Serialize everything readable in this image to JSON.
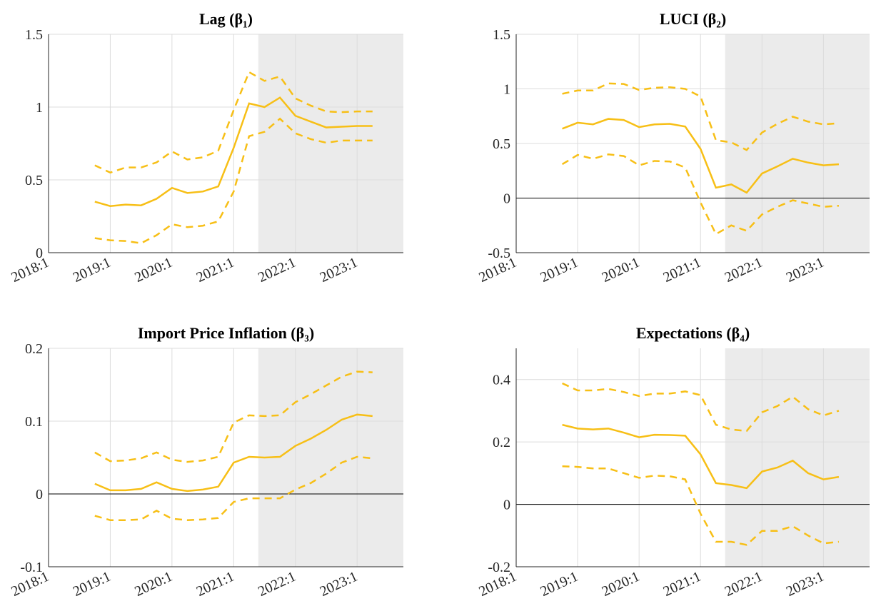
{
  "chart_data": [
    {
      "type": "line",
      "title": "Lag (β₁)",
      "x": [
        2018.75,
        2019,
        2019.25,
        2019.5,
        2019.75,
        2020,
        2020.25,
        2020.5,
        2020.75,
        2021,
        2021.25,
        2021.5,
        2021.75,
        2022,
        2022.25,
        2022.5,
        2022.75,
        2023,
        2023.25
      ],
      "xlim": [
        2018,
        2023.75
      ],
      "xticks": [
        {
          "value": 2018,
          "label": "2018:1"
        },
        {
          "value": 2019,
          "label": "2019:1"
        },
        {
          "value": 2020,
          "label": "2020:1"
        },
        {
          "value": 2021,
          "label": "2021:1"
        },
        {
          "value": 2022,
          "label": "2022:1"
        },
        {
          "value": 2023,
          "label": "2023:1"
        }
      ],
      "ylim": [
        0,
        1.5
      ],
      "yticks": [
        0,
        0.5,
        1,
        1.5
      ],
      "grid": true,
      "shaded_region": [
        2021.4,
        2023.75
      ],
      "series": [
        {
          "color": "#f7bf16",
          "dashed": false,
          "values": [
            0.35,
            0.32,
            0.33,
            0.325,
            0.37,
            0.445,
            0.41,
            0.42,
            0.455,
            0.72,
            1.025,
            1.0,
            1.065,
            0.94,
            0.9,
            0.86,
            0.865,
            0.87,
            0.87
          ]
        },
        {
          "color": "#f7bf16",
          "dashed": true,
          "values": [
            0.6,
            0.55,
            0.585,
            0.585,
            0.62,
            0.695,
            0.64,
            0.655,
            0.7,
            0.98,
            1.24,
            1.18,
            1.21,
            1.06,
            1.01,
            0.97,
            0.965,
            0.97,
            0.97
          ]
        },
        {
          "color": "#f7bf16",
          "dashed": true,
          "values": [
            0.1,
            0.085,
            0.08,
            0.065,
            0.12,
            0.195,
            0.175,
            0.185,
            0.215,
            0.42,
            0.8,
            0.83,
            0.92,
            0.82,
            0.78,
            0.755,
            0.77,
            0.77,
            0.77
          ]
        }
      ]
    },
    {
      "type": "line",
      "title": "LUCI (β₂)",
      "x": [
        2018.75,
        2019,
        2019.25,
        2019.5,
        2019.75,
        2020,
        2020.25,
        2020.5,
        2020.75,
        2021,
        2021.25,
        2021.5,
        2021.75,
        2022,
        2022.25,
        2022.5,
        2022.75,
        2023,
        2023.25
      ],
      "xlim": [
        2018,
        2023.75
      ],
      "xticks": [
        {
          "value": 2018,
          "label": "2018:1"
        },
        {
          "value": 2019,
          "label": "2019:1"
        },
        {
          "value": 2020,
          "label": "2020:1"
        },
        {
          "value": 2021,
          "label": "2021:1"
        },
        {
          "value": 2022,
          "label": "2022:1"
        },
        {
          "value": 2023,
          "label": "2023:1"
        }
      ],
      "ylim": [
        -0.5,
        1.5
      ],
      "yticks": [
        -0.5,
        0,
        0.5,
        1,
        1.5
      ],
      "grid": true,
      "shaded_region": [
        2021.4,
        2023.75
      ],
      "series": [
        {
          "color": "#f7bf16",
          "dashed": false,
          "values": [
            0.635,
            0.69,
            0.675,
            0.725,
            0.715,
            0.65,
            0.675,
            0.68,
            0.655,
            0.45,
            0.095,
            0.125,
            0.05,
            0.225,
            0.29,
            0.36,
            0.325,
            0.3,
            0.31
          ]
        },
        {
          "color": "#f7bf16",
          "dashed": true,
          "values": [
            0.955,
            0.985,
            0.985,
            1.05,
            1.045,
            0.99,
            1.01,
            1.015,
            1.0,
            0.93,
            0.53,
            0.51,
            0.44,
            0.6,
            0.68,
            0.745,
            0.7,
            0.675,
            0.685
          ]
        },
        {
          "color": "#f7bf16",
          "dashed": true,
          "values": [
            0.31,
            0.395,
            0.36,
            0.4,
            0.385,
            0.3,
            0.34,
            0.335,
            0.28,
            -0.04,
            -0.33,
            -0.25,
            -0.3,
            -0.15,
            -0.08,
            -0.02,
            -0.05,
            -0.08,
            -0.07
          ]
        }
      ]
    },
    {
      "type": "line",
      "title": "Import Price Inflation (β₃)",
      "x": [
        2018.75,
        2019,
        2019.25,
        2019.5,
        2019.75,
        2020,
        2020.25,
        2020.5,
        2020.75,
        2021,
        2021.25,
        2021.5,
        2021.75,
        2022,
        2022.25,
        2022.5,
        2022.75,
        2023,
        2023.25
      ],
      "xlim": [
        2018,
        2023.75
      ],
      "xticks": [
        {
          "value": 2018,
          "label": "2018:1"
        },
        {
          "value": 2019,
          "label": "2019:1"
        },
        {
          "value": 2020,
          "label": "2020:1"
        },
        {
          "value": 2021,
          "label": "2021:1"
        },
        {
          "value": 2022,
          "label": "2022:1"
        },
        {
          "value": 2023,
          "label": "2023:1"
        }
      ],
      "ylim": [
        -0.1,
        0.2
      ],
      "yticks": [
        -0.1,
        0,
        0.1,
        0.2
      ],
      "grid": true,
      "shaded_region": [
        2021.4,
        2023.75
      ],
      "series": [
        {
          "color": "#f7bf16",
          "dashed": false,
          "values": [
            0.014,
            0.005,
            0.005,
            0.007,
            0.016,
            0.007,
            0.004,
            0.006,
            0.01,
            0.043,
            0.051,
            0.05,
            0.051,
            0.066,
            0.076,
            0.088,
            0.102,
            0.109,
            0.107
          ]
        },
        {
          "color": "#f7bf16",
          "dashed": true,
          "values": [
            0.057,
            0.045,
            0.046,
            0.049,
            0.057,
            0.047,
            0.044,
            0.046,
            0.051,
            0.098,
            0.108,
            0.107,
            0.108,
            0.126,
            0.137,
            0.149,
            0.161,
            0.168,
            0.167
          ]
        },
        {
          "color": "#f7bf16",
          "dashed": true,
          "values": [
            -0.03,
            -0.036,
            -0.036,
            -0.035,
            -0.023,
            -0.034,
            -0.036,
            -0.035,
            -0.033,
            -0.011,
            -0.006,
            -0.006,
            -0.006,
            0.006,
            0.015,
            0.028,
            0.043,
            0.051,
            0.049
          ]
        }
      ]
    },
    {
      "type": "line",
      "title": "Expectations (β₄)",
      "x": [
        2018.75,
        2019,
        2019.25,
        2019.5,
        2019.75,
        2020,
        2020.25,
        2020.5,
        2020.75,
        2021,
        2021.25,
        2021.5,
        2021.75,
        2022,
        2022.25,
        2022.5,
        2022.75,
        2023,
        2023.25
      ],
      "xlim": [
        2018,
        2023.75
      ],
      "xticks": [
        {
          "value": 2018,
          "label": "2018:1"
        },
        {
          "value": 2019,
          "label": "2019:1"
        },
        {
          "value": 2020,
          "label": "2020:1"
        },
        {
          "value": 2021,
          "label": "2021:1"
        },
        {
          "value": 2022,
          "label": "2022:1"
        },
        {
          "value": 2023,
          "label": "2023:1"
        }
      ],
      "ylim": [
        -0.2,
        0.5
      ],
      "yticks": [
        -0.2,
        0,
        0.2,
        0.4
      ],
      "grid": true,
      "shaded_region": [
        2021.4,
        2023.75
      ],
      "series": [
        {
          "color": "#f7bf16",
          "dashed": false,
          "values": [
            0.255,
            0.243,
            0.24,
            0.243,
            0.23,
            0.215,
            0.223,
            0.222,
            0.22,
            0.16,
            0.068,
            0.062,
            0.052,
            0.105,
            0.118,
            0.14,
            0.1,
            0.08,
            0.088
          ]
        },
        {
          "color": "#f7bf16",
          "dashed": true,
          "values": [
            0.388,
            0.365,
            0.365,
            0.37,
            0.36,
            0.347,
            0.355,
            0.355,
            0.362,
            0.35,
            0.255,
            0.24,
            0.235,
            0.295,
            0.315,
            0.345,
            0.305,
            0.285,
            0.3
          ]
        },
        {
          "color": "#f7bf16",
          "dashed": true,
          "values": [
            0.122,
            0.12,
            0.115,
            0.115,
            0.1,
            0.085,
            0.092,
            0.09,
            0.08,
            -0.03,
            -0.12,
            -0.12,
            -0.13,
            -0.085,
            -0.085,
            -0.07,
            -0.1,
            -0.125,
            -0.12
          ]
        }
      ]
    }
  ]
}
